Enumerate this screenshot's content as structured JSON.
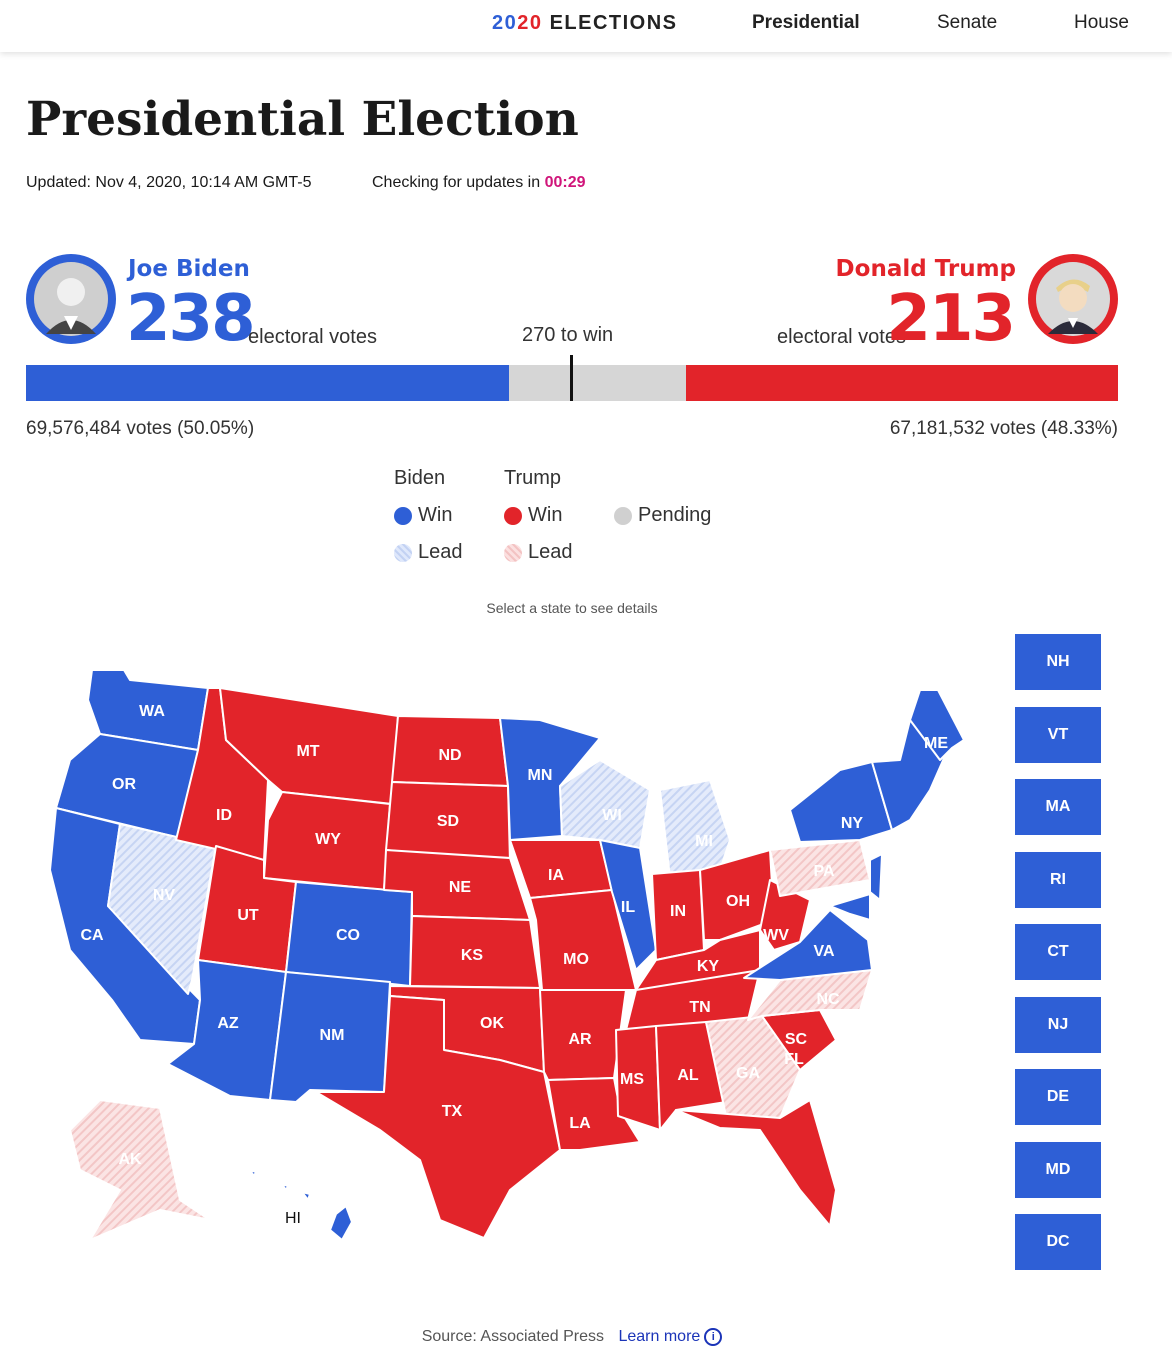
{
  "nav": {
    "brand_year_a": "20",
    "brand_year_b": "20",
    "brand_text": "ELECTIONS",
    "links": [
      "Presidential",
      "Senate",
      "House"
    ]
  },
  "page": {
    "title": "Presidential Election",
    "updated": "Updated: Nov 4, 2020, 10:14 AM GMT-5",
    "checking": "Checking for updates in",
    "timer": "00:29"
  },
  "biden": {
    "name": "Joe Biden",
    "ev": "238",
    "ev_label": "electoral votes",
    "popular": "69,576,484 votes (50.05%)",
    "color": "#2e5fd6"
  },
  "trump": {
    "name": "Donald Trump",
    "ev": "213",
    "ev_label": "electoral votes",
    "popular": "67,181,532 votes (48.33%)",
    "color": "#e2242a"
  },
  "to_win": "270 to win",
  "legend": {
    "biden_header": "Biden",
    "trump_header": "Trump",
    "win": "Win",
    "lead": "Lead",
    "pending": "Pending"
  },
  "map": {
    "hint": "Select a state to see details",
    "hi_label": "HI",
    "state_labels": {
      "WA": "WA",
      "OR": "OR",
      "CA": "CA",
      "NV": "NV",
      "ID": "ID",
      "MT": "MT",
      "WY": "WY",
      "UT": "UT",
      "CO": "CO",
      "AZ": "AZ",
      "NM": "NM",
      "ND": "ND",
      "SD": "SD",
      "NE": "NE",
      "KS": "KS",
      "OK": "OK",
      "TX": "TX",
      "MN": "MN",
      "IA": "IA",
      "MO": "MO",
      "AR": "AR",
      "LA": "LA",
      "WI": "WI",
      "IL": "IL",
      "MI": "MI",
      "IN": "IN",
      "OH": "OH",
      "KY": "KY",
      "TN": "TN",
      "MS": "MS",
      "AL": "AL",
      "GA": "GA",
      "FL": "FL",
      "SC": "SC",
      "NC": "NC",
      "VA": "VA",
      "WV": "WV",
      "PA": "PA",
      "NY": "NY",
      "ME": "ME",
      "AK": "AK"
    },
    "small_states": [
      "NH",
      "VT",
      "MA",
      "RI",
      "CT",
      "NJ",
      "DE",
      "MD",
      "DC"
    ]
  },
  "footer": {
    "source": "Source: Associated Press",
    "learn_more": "Learn more",
    "info_icon": "info-icon"
  }
}
